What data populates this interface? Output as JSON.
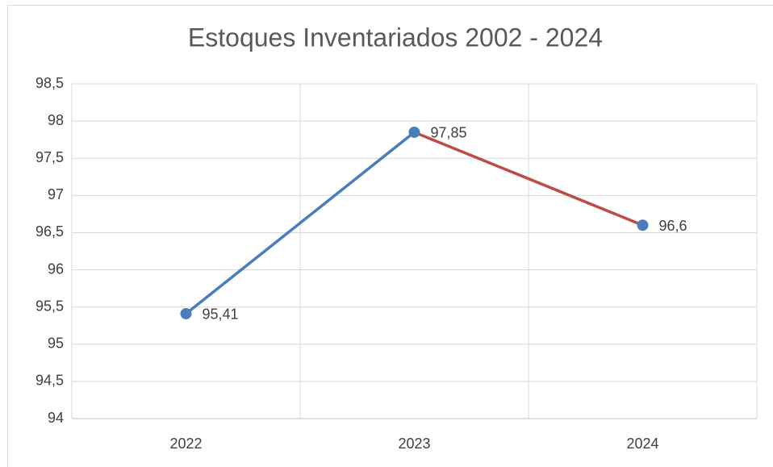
{
  "chart_data": {
    "type": "line",
    "title": "Estoques Inventariados 2002 - 2024",
    "categories": [
      "2022",
      "2023",
      "2024"
    ],
    "values": [
      95.41,
      97.85,
      96.6
    ],
    "value_labels": [
      "95,41",
      "97,85",
      "96,6"
    ],
    "color": "#4a7ebb",
    "segment_colors": [
      "#4a7ebb",
      "#be4b48"
    ],
    "ylim": [
      94,
      98.5
    ],
    "yticks": [
      94,
      {
        "value": 94.5,
        "label": "94,5"
      },
      95,
      {
        "value": 95.5,
        "label": "95,5"
      },
      96,
      {
        "value": 96.5,
        "label": "96,5"
      },
      97,
      {
        "value": 97.5,
        "label": "97,5"
      },
      98,
      {
        "value": 98.5,
        "label": "98,5"
      }
    ],
    "grid": true
  }
}
